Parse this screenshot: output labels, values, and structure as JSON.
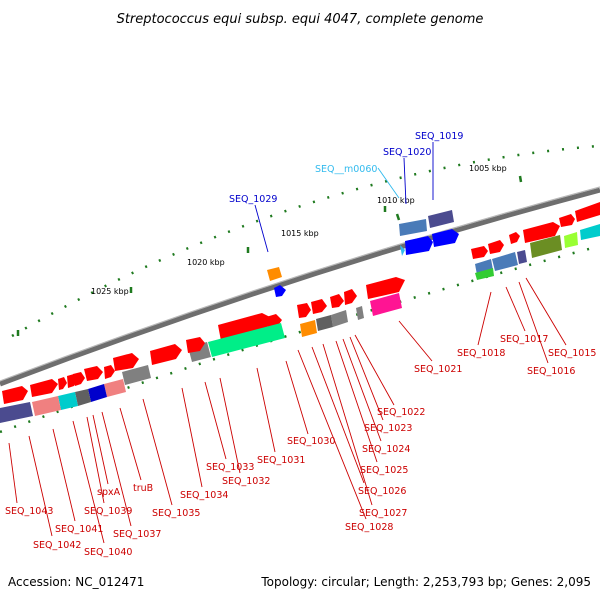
{
  "title": "Streptococcus equi subsp. equi 4047, complete genome",
  "accession": "Accession: NC_012471",
  "topology": "Topology: circular; Length: 2,253,793 bp; Genes: 2,095",
  "colors": {
    "red_gene": "#ff0000",
    "blue_label": "#0000cc",
    "cyan_label": "#33bbee",
    "red_label": "#cc0000",
    "backbone": "#808080",
    "tick": "#1f7a1f"
  },
  "kbp_ticks": [
    {
      "label": "1005 kbp"
    },
    {
      "label": "1010 kbp"
    },
    {
      "label": "1015 kbp"
    },
    {
      "label": "1020 kbp"
    },
    {
      "label": "1025 kbp"
    }
  ],
  "gene_labels": [
    {
      "text": "SEQ_1019",
      "color": "#0000cc"
    },
    {
      "text": "SEQ_1020",
      "color": "#0000cc"
    },
    {
      "text": "SEQ__m0060",
      "color": "#33bbee"
    },
    {
      "text": "SEQ_1029",
      "color": "#0000cc"
    },
    {
      "text": "SEQ_1015",
      "color": "#cc0000"
    },
    {
      "text": "SEQ_1016",
      "color": "#cc0000"
    },
    {
      "text": "SEQ_1017",
      "color": "#cc0000"
    },
    {
      "text": "SEQ_1018",
      "color": "#cc0000"
    },
    {
      "text": "SEQ_1021",
      "color": "#cc0000"
    },
    {
      "text": "SEQ_1022",
      "color": "#cc0000"
    },
    {
      "text": "SEQ_1023",
      "color": "#cc0000"
    },
    {
      "text": "SEQ_1024",
      "color": "#cc0000"
    },
    {
      "text": "SEQ_1025",
      "color": "#cc0000"
    },
    {
      "text": "SEQ_1026",
      "color": "#cc0000"
    },
    {
      "text": "SEQ_1027",
      "color": "#cc0000"
    },
    {
      "text": "SEQ_1028",
      "color": "#cc0000"
    },
    {
      "text": "SEQ_1030",
      "color": "#cc0000"
    },
    {
      "text": "SEQ_1031",
      "color": "#cc0000"
    },
    {
      "text": "SEQ_1032",
      "color": "#cc0000"
    },
    {
      "text": "SEQ_1033",
      "color": "#cc0000"
    },
    {
      "text": "SEQ_1034",
      "color": "#cc0000"
    },
    {
      "text": "SEQ_1035",
      "color": "#cc0000"
    },
    {
      "text": "truB",
      "color": "#cc0000"
    },
    {
      "text": "SEQ_1037",
      "color": "#cc0000"
    },
    {
      "text": "spxA",
      "color": "#cc0000"
    },
    {
      "text": "SEQ_1039",
      "color": "#cc0000"
    },
    {
      "text": "SEQ_1040",
      "color": "#cc0000"
    },
    {
      "text": "SEQ_1041",
      "color": "#cc0000"
    },
    {
      "text": "SEQ_1042",
      "color": "#cc0000"
    },
    {
      "text": "SEQ_1043",
      "color": "#cc0000"
    }
  ]
}
